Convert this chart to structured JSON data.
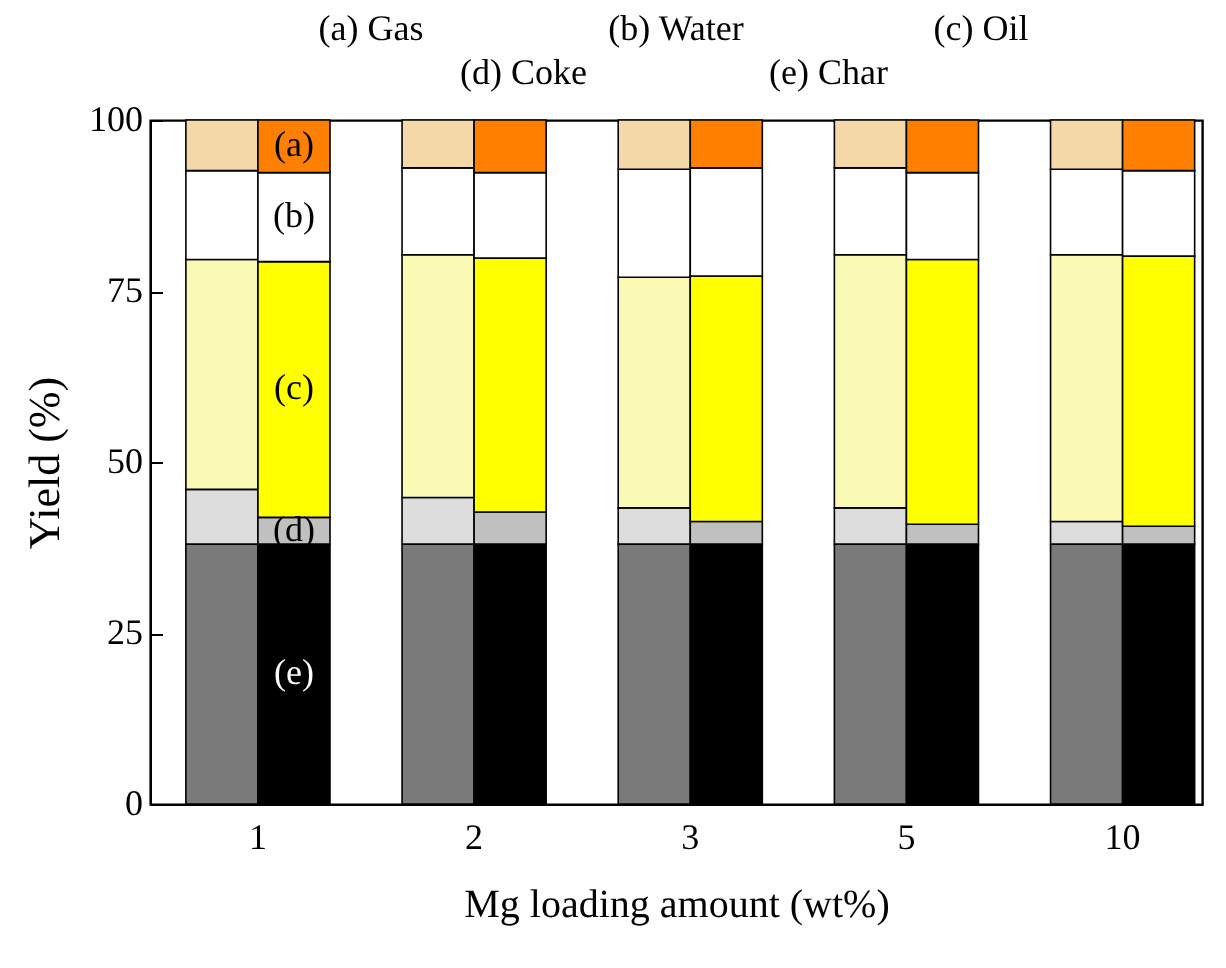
{
  "chart_data": {
    "type": "bar",
    "stacked": true,
    "xlabel": "Mg loading amount (wt%)",
    "ylabel": "Yield (%)",
    "categories": [
      null,
      "1",
      null,
      null,
      "2",
      null,
      null,
      "3",
      null,
      null,
      "5",
      null,
      null,
      "10"
    ],
    "ylim": [
      0,
      100
    ],
    "yticks": [
      0,
      25,
      50,
      75,
      100
    ],
    "grid": false,
    "series": [
      {
        "color": "#7a7a7a",
        "values": [
          38,
          null,
          null,
          38,
          null,
          null,
          38,
          null,
          null,
          38,
          null,
          null,
          38,
          null
        ]
      },
      {
        "color": "#dcdcdc",
        "values": [
          8.0,
          null,
          null,
          6.8,
          null,
          null,
          5.3,
          null,
          null,
          5.3,
          null,
          null,
          3.3,
          null
        ]
      },
      {
        "color": "#fafab4",
        "values": [
          33.6,
          null,
          null,
          35.5,
          null,
          null,
          33.7,
          null,
          null,
          37.0,
          null,
          null,
          39.0,
          null
        ]
      },
      {
        "color": "#ffffff",
        "values": [
          13.0,
          null,
          null,
          12.7,
          null,
          null,
          15.8,
          null,
          null,
          12.7,
          null,
          null,
          12.5,
          null
        ]
      },
      {
        "color": "#f5d8a8",
        "values": [
          7.4,
          null,
          null,
          7.0,
          null,
          null,
          7.2,
          null,
          null,
          7.0,
          null,
          null,
          7.2,
          null
        ]
      },
      {
        "color": "#000000",
        "values": [
          null,
          38,
          null,
          null,
          38,
          null,
          null,
          38,
          null,
          null,
          38,
          null,
          null,
          38
        ]
      },
      {
        "color": "#c0c0c0",
        "values": [
          null,
          3.9,
          null,
          null,
          4.7,
          null,
          null,
          3.3,
          null,
          null,
          2.9,
          null,
          null,
          2.6
        ]
      },
      {
        "color": "#ffff00",
        "values": [
          null,
          37.4,
          null,
          null,
          37.1,
          null,
          null,
          35.9,
          null,
          null,
          38.7,
          null,
          null,
          39.5
        ]
      },
      {
        "color": "#ffffff",
        "values": [
          null,
          13.0,
          null,
          null,
          12.5,
          null,
          null,
          15.8,
          null,
          null,
          12.7,
          null,
          null,
          12.5
        ]
      },
      {
        "color": "#ff8000",
        "values": [
          null,
          7.7,
          null,
          null,
          7.7,
          null,
          null,
          7.0,
          null,
          null,
          7.7,
          null,
          null,
          7.4
        ]
      }
    ],
    "annotations": [
      "(a) Gas",
      "(b) Water",
      "(c) Oil",
      "(d) Coke",
      "(e) Char",
      "(a)",
      "(b)",
      "(c)",
      "(d)",
      "(e)"
    ]
  }
}
